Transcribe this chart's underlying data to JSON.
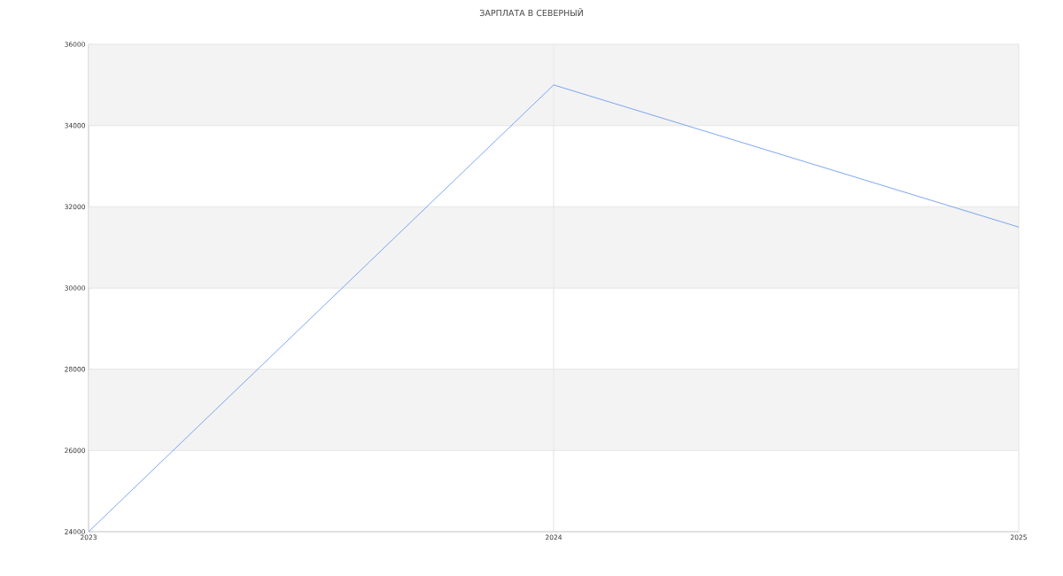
{
  "chart_data": {
    "type": "line",
    "title": "ЗАРПЛАТА В СЕВЕРНЫЙ",
    "x": [
      2023,
      2024,
      2025
    ],
    "series": [
      {
        "color": "#6f9cf0",
        "values": [
          24000,
          35000,
          31500
        ]
      }
    ],
    "xlim": [
      2023,
      2025
    ],
    "xticks": [
      2023,
      2024,
      2025
    ],
    "ylim": [
      24000,
      36000
    ],
    "yticks": [
      24000,
      26000,
      28000,
      30000,
      32000,
      34000,
      36000
    ],
    "grid": true,
    "marker": "none",
    "line_style": "solid"
  }
}
